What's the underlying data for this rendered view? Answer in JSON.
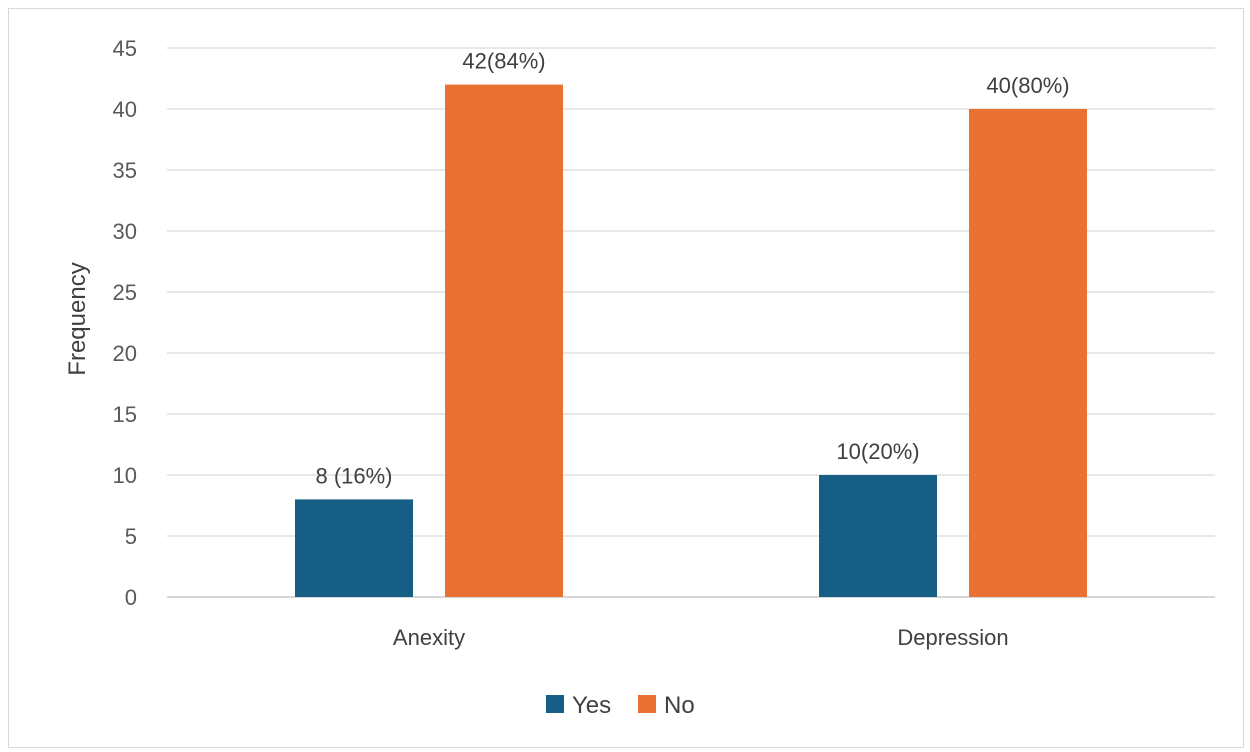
{
  "chart_data": {
    "type": "bar",
    "title": "",
    "xlabel": "",
    "ylabel": "Frequency",
    "ylim": [
      0,
      45
    ],
    "yticks": [
      0,
      5,
      10,
      15,
      20,
      25,
      30,
      35,
      40,
      45
    ],
    "grid": true,
    "legend_position": "bottom",
    "categories": [
      "Anexity",
      "Depression"
    ],
    "series": [
      {
        "name": "Yes",
        "color": "#165E83",
        "values": [
          8,
          10
        ],
        "labels": [
          "8 (16%)",
          "10(20%)"
        ]
      },
      {
        "name": "No",
        "color": "#E97132",
        "values": [
          42,
          40
        ],
        "labels": [
          "42(84%)",
          "40(80%)"
        ]
      }
    ]
  }
}
